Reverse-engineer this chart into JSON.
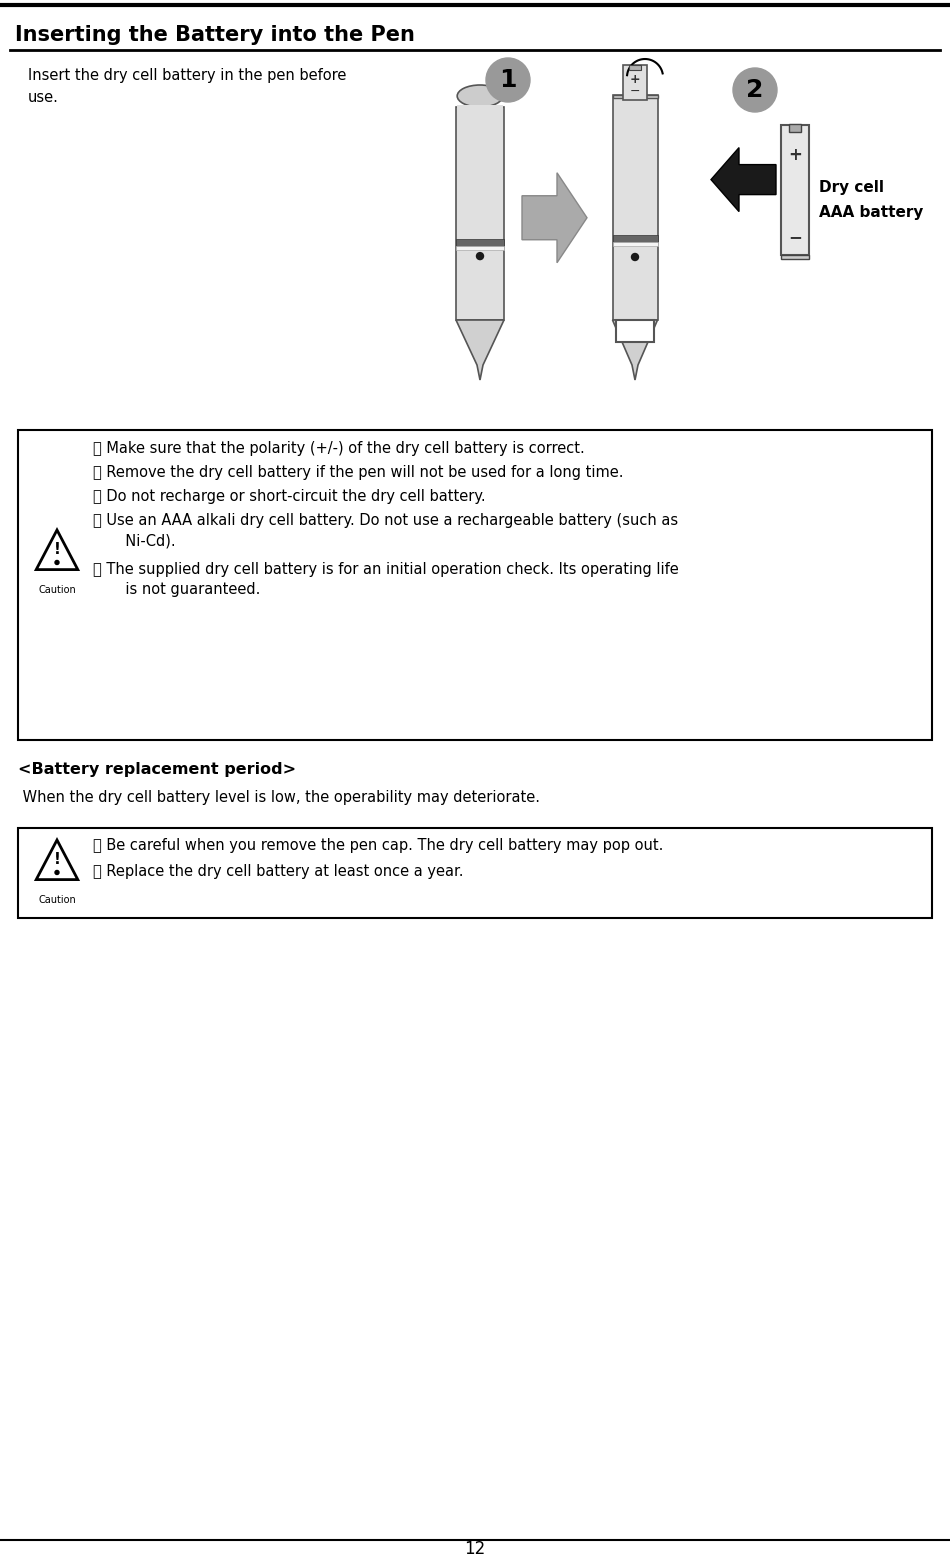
{
  "title": "Inserting the Battery into the Pen",
  "intro_text": "Insert the dry cell battery in the pen before\nuse.",
  "dry_cell_label1": "Dry cell",
  "dry_cell_label2": "AAA battery",
  "caution_box1_items": [
    "・ Make sure that the polarity (+/-) of the dry cell battery is correct.",
    "・ Remove the dry cell battery if the pen will not be used for a long time.",
    "・ Do not recharge or short-circuit the dry cell battery.",
    "・ Use an AAA alkali dry cell battery. Do not use a rechargeable battery (such as\n       Ni-Cd).",
    "・ The supplied dry cell battery is for an initial operation check. Its operating life\n       is not guaranteed."
  ],
  "battery_period_header": "<Battery replacement period>",
  "battery_period_text": " When the dry cell battery level is low, the operability may deteriorate.",
  "caution_box2_items": [
    "・ Be careful when you remove the pen cap. The dry cell battery may pop out.",
    "・ Replace the dry cell battery at least once a year."
  ],
  "page_number": "12",
  "bg_color": "#ffffff",
  "text_color": "#000000",
  "box_border_color": "#000000"
}
